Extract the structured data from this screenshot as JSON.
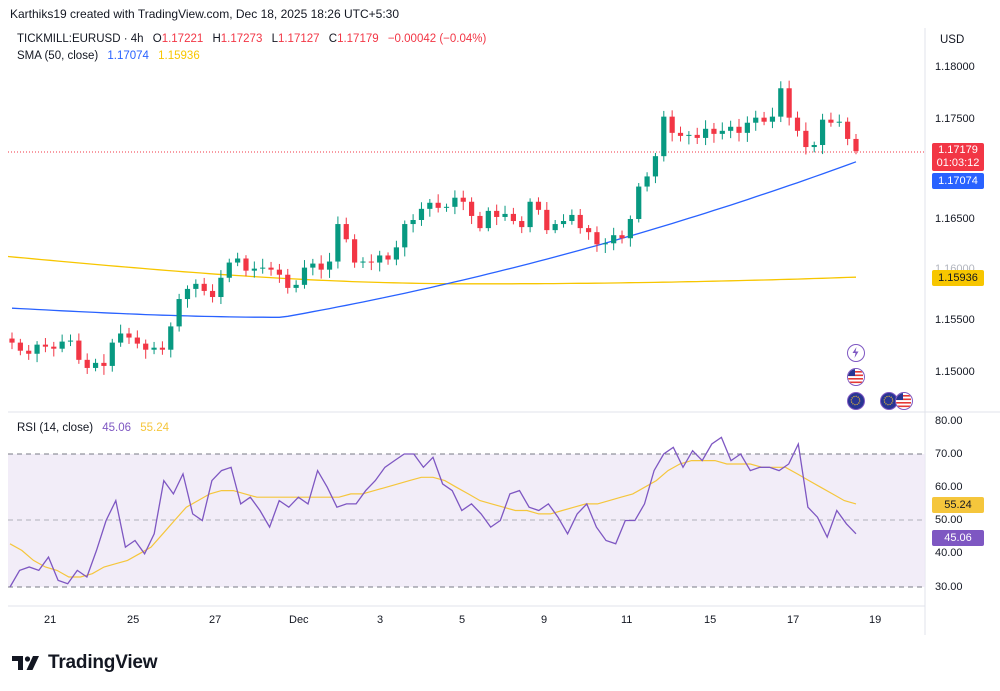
{
  "header": {
    "created_by": "Karthiks19 created with TradingView.com, Dec 18, 2025 18:26 UTC+5:30"
  },
  "legend": {
    "symbol": "TICKMILL:EURUSD · 4h",
    "o_label": "O",
    "o_value": "1.17221",
    "h_label": "H",
    "h_value": "1.17273",
    "l_label": "L",
    "l_value": "1.17127",
    "c_label": "C",
    "c_value": "1.17179",
    "change": "−0.00042 (−0.04%)",
    "sma_label": "SMA (50, close)",
    "sma_value1": "1.17074",
    "sma_value2": "1.15936",
    "rsi_label": "RSI (14, close)",
    "rsi_value": "45.06",
    "rsi_ma_value": "55.24"
  },
  "currency": "USD",
  "price_axis": {
    "ticks": [
      "1.18000",
      "1.17500",
      "1.16500",
      "1.15500",
      "1.15000"
    ],
    "partial_tick": "1.16000",
    "last_price": "1.17179",
    "countdown": "01:03:12",
    "sma_fast_tag": "1.17074",
    "sma_slow_tag": "1.15936"
  },
  "rsi_axis": {
    "ticks": [
      "80.00",
      "70.00",
      "60.00",
      "50.00",
      "40.00",
      "30.00"
    ],
    "ma_tag": "55.24",
    "rsi_tag": "45.06"
  },
  "time_axis": {
    "labels": [
      "21",
      "25",
      "27",
      "Dec",
      "3",
      "5",
      "9",
      "11",
      "15",
      "17",
      "19"
    ]
  },
  "brand": "TradingView",
  "colors": {
    "up": "#089981",
    "down": "#f23645",
    "sma_fast": "#2962ff",
    "sma_slow": "#f7c600",
    "rsi": "#7e57c2",
    "rsi_ma": "#f5c63c",
    "rsi_band": "#ede7f6"
  },
  "icons": {
    "lightning": "lightning-icon",
    "us_flag": "us-flag-icon",
    "eu_flag": "eu-flag-icon"
  },
  "chart_data": [
    {
      "type": "candlestick",
      "symbol": "TICKMILL:EURUSD",
      "timeframe": "4h",
      "ylim": [
        1.1455,
        1.1825
      ],
      "x_labels": [
        "21",
        "25",
        "27",
        "Dec",
        "3",
        "5",
        "9",
        "11",
        "15",
        "17",
        "19"
      ],
      "candles_close": [
        1.1529,
        1.1521,
        1.1518,
        1.1527,
        1.1525,
        1.1523,
        1.153,
        1.1531,
        1.1512,
        1.1504,
        1.1509,
        1.1506,
        1.1529,
        1.1538,
        1.1534,
        1.1528,
        1.1522,
        1.1524,
        1.1522,
        1.1545,
        1.1572,
        1.1582,
        1.1587,
        1.158,
        1.1574,
        1.1593,
        1.1608,
        1.1612,
        1.16,
        1.1602,
        1.1603,
        1.1601,
        1.1596,
        1.1583,
        1.1586,
        1.1603,
        1.1607,
        1.1601,
        1.1609,
        1.1646,
        1.1631,
        1.1608,
        1.1609,
        1.1608,
        1.1615,
        1.1611,
        1.1623,
        1.1646,
        1.165,
        1.1661,
        1.1667,
        1.1662,
        1.1663,
        1.1672,
        1.1668,
        1.1654,
        1.1642,
        1.1659,
        1.1653,
        1.1656,
        1.1649,
        1.1643,
        1.1668,
        1.166,
        1.164,
        1.1646,
        1.1649,
        1.1655,
        1.1642,
        1.1638,
        1.1626,
        1.1627,
        1.1635,
        1.1632,
        1.1651,
        1.1683,
        1.1693,
        1.1713,
        1.1752,
        1.1736,
        1.1733,
        1.1734,
        1.1731,
        1.174,
        1.1735,
        1.1738,
        1.1742,
        1.1736,
        1.1746,
        1.1751,
        1.1747,
        1.1752,
        1.178,
        1.1751,
        1.1738,
        1.1722,
        1.1724,
        1.1749,
        1.1746,
        1.1747,
        1.173,
        1.1718
      ],
      "sma_fast": {
        "name": "SMA (50, close)",
        "last": 1.17074,
        "start": 1.1563,
        "min": 1.1554
      },
      "sma_slow": {
        "last": 1.15936,
        "start": 1.1614,
        "min": 1.1587
      }
    },
    {
      "type": "line",
      "name": "RSI (14, close)",
      "ylim": [
        26,
        82
      ],
      "bands": [
        30,
        50,
        70
      ],
      "series": [
        {
          "name": "RSI",
          "last": 45.06
        },
        {
          "name": "RSI MA",
          "last": 55.24
        }
      ],
      "rsi_values": [
        30,
        35,
        36,
        35,
        39,
        32,
        31,
        35,
        33,
        41,
        50,
        56,
        42,
        44,
        40,
        46,
        62,
        58,
        64,
        52,
        50,
        62,
        65,
        66,
        55,
        57,
        53,
        48,
        56,
        54,
        57,
        55,
        65,
        60,
        54,
        55,
        55,
        59,
        62,
        66,
        68,
        70,
        70,
        66,
        69,
        61,
        59,
        53,
        55,
        52,
        48,
        50,
        58,
        59,
        54,
        53,
        55,
        51,
        46,
        52,
        55,
        48,
        44,
        43,
        50,
        50,
        55,
        65,
        70,
        72,
        66,
        71,
        68,
        73,
        75,
        68,
        70,
        65,
        66,
        66,
        65,
        67,
        73,
        54,
        51,
        45,
        53,
        49,
        46
      ],
      "rsi_ma_values": [
        43,
        41,
        38,
        36,
        35,
        33,
        33,
        34,
        36,
        37,
        38,
        40,
        42,
        46,
        50,
        54,
        56,
        58,
        59,
        59,
        58,
        57,
        57,
        57,
        57,
        57,
        57,
        57,
        57,
        58,
        58,
        59,
        60,
        61,
        62,
        63,
        63,
        62,
        60,
        58,
        56,
        55,
        54,
        53,
        53,
        52,
        52,
        53,
        54,
        55,
        55,
        56,
        57,
        58,
        60,
        62,
        65,
        67,
        68,
        68,
        68,
        67,
        67,
        67,
        66,
        66,
        66,
        64,
        62,
        60,
        58,
        56,
        55
      ]
    }
  ]
}
